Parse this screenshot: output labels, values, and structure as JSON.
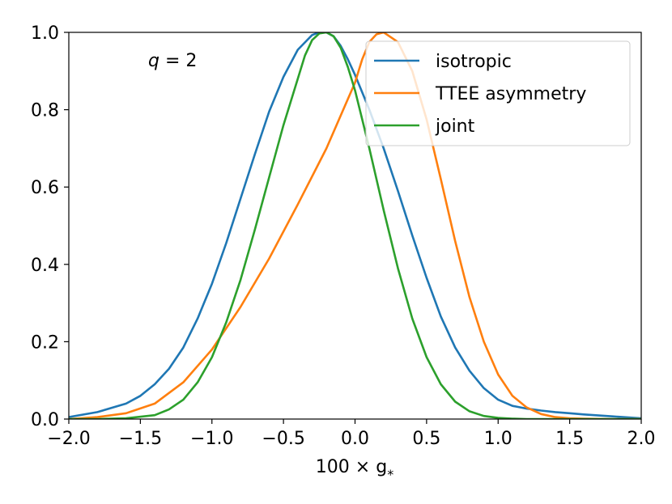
{
  "chart_data": {
    "type": "line",
    "title": "",
    "xlabel": "100 × g",
    "xlabel_subscript": "*",
    "ylabel": "",
    "xlim": [
      -2.0,
      2.0
    ],
    "ylim": [
      0.0,
      1.0
    ],
    "x_ticks": [
      -2.0,
      -1.5,
      -1.0,
      -0.5,
      0.0,
      0.5,
      1.0,
      1.5,
      2.0
    ],
    "x_tick_labels": [
      "−2.0",
      "−1.5",
      "−1.0",
      "−0.5",
      "0.0",
      "0.5",
      "1.0",
      "1.5",
      "2.0"
    ],
    "y_ticks": [
      0.0,
      0.2,
      0.4,
      0.6,
      0.8,
      1.0
    ],
    "y_tick_labels": [
      "0.0",
      "0.2",
      "0.4",
      "0.6",
      "0.8",
      "1.0"
    ],
    "grid": false,
    "legend_position": "top-right",
    "annotation": {
      "var": "q",
      "eq": " = 2"
    },
    "series": [
      {
        "name": "isotropic",
        "color": "#1f77b4",
        "x": [
          -2.0,
          -1.8,
          -1.6,
          -1.5,
          -1.4,
          -1.3,
          -1.2,
          -1.1,
          -1.0,
          -0.9,
          -0.8,
          -0.7,
          -0.6,
          -0.5,
          -0.4,
          -0.3,
          -0.25,
          -0.2,
          -0.15,
          -0.1,
          -0.05,
          0.0,
          0.1,
          0.2,
          0.3,
          0.4,
          0.5,
          0.6,
          0.7,
          0.8,
          0.9,
          1.0,
          1.1,
          1.2,
          1.3,
          1.4,
          1.5,
          1.6,
          1.8,
          2.0
        ],
        "y": [
          0.005,
          0.018,
          0.04,
          0.06,
          0.09,
          0.13,
          0.185,
          0.26,
          0.35,
          0.455,
          0.57,
          0.685,
          0.795,
          0.885,
          0.955,
          0.993,
          1.0,
          1.0,
          0.99,
          0.965,
          0.93,
          0.89,
          0.8,
          0.7,
          0.59,
          0.475,
          0.365,
          0.265,
          0.185,
          0.125,
          0.08,
          0.05,
          0.034,
          0.027,
          0.022,
          0.018,
          0.015,
          0.012,
          0.007,
          0.002
        ]
      },
      {
        "name": "TTEE asymmetry",
        "color": "#ff7f0e",
        "x": [
          -2.0,
          -1.8,
          -1.6,
          -1.4,
          -1.2,
          -1.0,
          -0.8,
          -0.6,
          -0.4,
          -0.2,
          0.0,
          0.05,
          0.1,
          0.15,
          0.2,
          0.3,
          0.4,
          0.5,
          0.6,
          0.7,
          0.8,
          0.9,
          1.0,
          1.1,
          1.2,
          1.3,
          1.4,
          1.5,
          1.6,
          1.8,
          2.0
        ],
        "y": [
          0.0,
          0.005,
          0.015,
          0.04,
          0.095,
          0.18,
          0.29,
          0.415,
          0.555,
          0.7,
          0.87,
          0.93,
          0.975,
          0.995,
          1.0,
          0.975,
          0.9,
          0.775,
          0.62,
          0.46,
          0.315,
          0.2,
          0.115,
          0.06,
          0.03,
          0.013,
          0.005,
          0.002,
          0.001,
          0.0,
          0.0
        ]
      },
      {
        "name": "joint",
        "color": "#2ca02c",
        "x": [
          -2.0,
          -1.8,
          -1.6,
          -1.4,
          -1.3,
          -1.2,
          -1.1,
          -1.0,
          -0.9,
          -0.8,
          -0.7,
          -0.6,
          -0.5,
          -0.4,
          -0.35,
          -0.3,
          -0.25,
          -0.2,
          -0.15,
          -0.1,
          -0.05,
          0.0,
          0.1,
          0.2,
          0.3,
          0.4,
          0.5,
          0.6,
          0.7,
          0.8,
          0.9,
          1.0,
          1.1,
          1.2,
          1.4,
          1.6,
          2.0
        ],
        "y": [
          0.0,
          0.0,
          0.002,
          0.01,
          0.025,
          0.05,
          0.095,
          0.16,
          0.25,
          0.36,
          0.49,
          0.625,
          0.76,
          0.88,
          0.94,
          0.98,
          0.997,
          1.0,
          0.99,
          0.96,
          0.91,
          0.85,
          0.7,
          0.54,
          0.39,
          0.26,
          0.16,
          0.09,
          0.045,
          0.02,
          0.008,
          0.003,
          0.001,
          0.0,
          0.0,
          0.0,
          0.0
        ]
      }
    ]
  }
}
